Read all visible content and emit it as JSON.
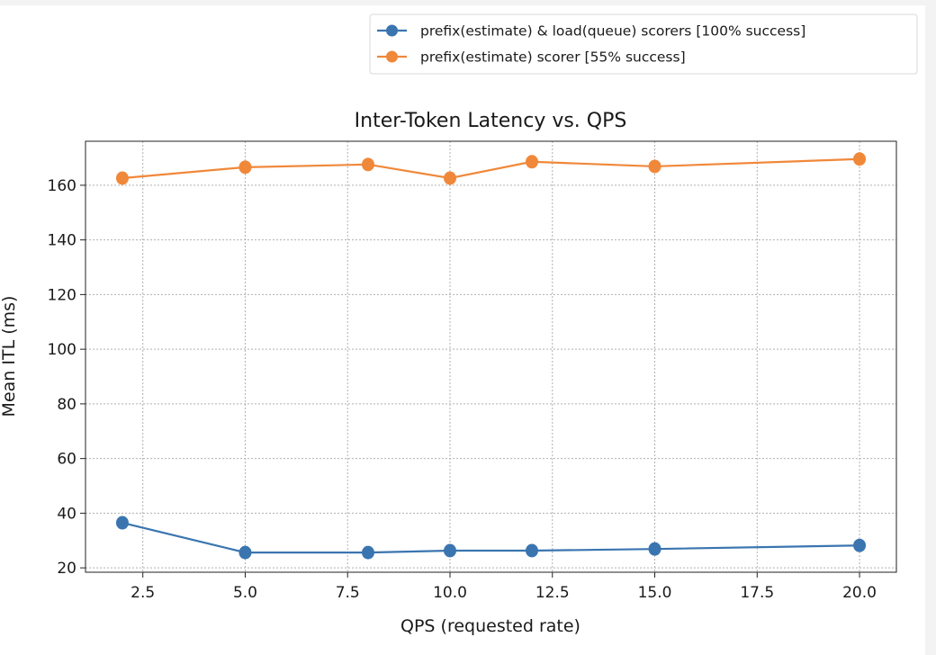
{
  "chart_data": {
    "type": "line",
    "title": "Inter-Token Latency vs. QPS",
    "xlabel": "QPS (requested rate)",
    "ylabel": "Mean ITL (ms)",
    "xlim": [
      1.1,
      20.9
    ],
    "ylim": [
      18.4,
      176.1
    ],
    "xticks": [
      "2.5",
      "5.0",
      "7.5",
      "10.0",
      "12.5",
      "15.0",
      "17.5",
      "20.0"
    ],
    "yticks": [
      "20",
      "40",
      "60",
      "80",
      "100",
      "120",
      "140",
      "160"
    ],
    "grid": true,
    "legend_placement": "upper-right-outside",
    "x": [
      2,
      5,
      8,
      10,
      12,
      15,
      20
    ],
    "series": [
      {
        "name": "prefix(estimate) & load(queue) scorers [100% success]",
        "color": "#3a75b0",
        "values": [
          36.5,
          25.6,
          25.6,
          26.3,
          26.3,
          26.9,
          28.2
        ]
      },
      {
        "name": "prefix(estimate) scorer [55% success]",
        "color": "#f0883a",
        "values": [
          162.6,
          166.6,
          167.6,
          162.6,
          168.6,
          166.9,
          169.6
        ]
      }
    ]
  }
}
